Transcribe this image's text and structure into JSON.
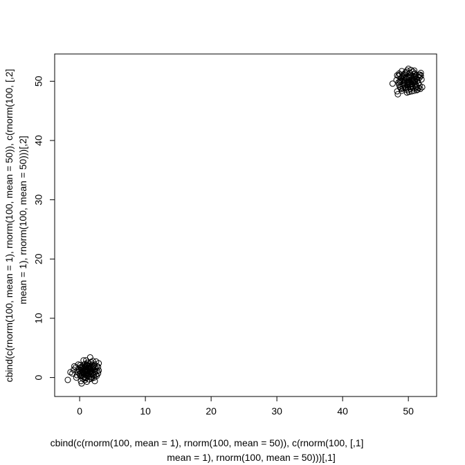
{
  "chart_data": {
    "type": "scatter",
    "title": "",
    "xlabel_lines": [
      "cbind(c(rnorm(100, mean = 1), rnorm(100, mean = 50)), c(rnorm(100, [,1]",
      "mean = 1), rnorm(100, mean = 50)))[,1]"
    ],
    "ylabel_lines": [
      "cbind(c(rnorm(100, mean = 1), rnorm(100, mean = 50)), c(rnorm(100, [,2]",
      "mean = 1), rnorm(100, mean = 50)))[,2]"
    ],
    "xlim": [
      -3.8,
      54.3
    ],
    "ylim": [
      -3.2,
      54.6
    ],
    "x_ticks": [
      0,
      10,
      20,
      30,
      40,
      50
    ],
    "y_ticks": [
      0,
      10,
      20,
      30,
      40,
      50
    ],
    "grid": false,
    "marker": "open-circle",
    "clusters": [
      {
        "center": [
          1,
          1
        ],
        "sd": 1,
        "n": 100
      },
      {
        "center": [
          50,
          50
        ],
        "sd": 1,
        "n": 100
      }
    ],
    "points": [
      [
        0.2,
        1.3
      ],
      [
        1.5,
        0.8
      ],
      [
        0.9,
        1.9
      ],
      [
        1.8,
        1.1
      ],
      [
        0.4,
        0.2
      ],
      [
        1.2,
        2.5
      ],
      [
        2.1,
        1.6
      ],
      [
        -0.3,
        1.0
      ],
      [
        1.0,
        0.5
      ],
      [
        0.6,
        1.5
      ],
      [
        1.7,
        0.1
      ],
      [
        2.4,
        0.9
      ],
      [
        0.1,
        2.1
      ],
      [
        1.4,
        1.4
      ],
      [
        0.8,
        -0.4
      ],
      [
        2.8,
        1.8
      ],
      [
        -1.1,
        0.7
      ],
      [
        0.5,
        0.9
      ],
      [
        1.9,
        2.2
      ],
      [
        1.1,
        1.0
      ],
      [
        0.3,
        -1.0
      ],
      [
        2.6,
        0.3
      ],
      [
        1.6,
        3.4
      ],
      [
        0.7,
        1.2
      ],
      [
        -0.6,
        1.7
      ],
      [
        1.3,
        0.4
      ],
      [
        2.2,
        1.3
      ],
      [
        0.0,
        0.6
      ],
      [
        1.0,
        1.8
      ],
      [
        2.9,
        2.4
      ],
      [
        0.6,
        2.9
      ],
      [
        1.8,
        -0.2
      ],
      [
        -0.1,
        1.4
      ],
      [
        1.5,
        1.6
      ],
      [
        2.3,
        -0.6
      ],
      [
        0.9,
        0.0
      ],
      [
        1.2,
        2.1
      ],
      [
        0.2,
        0.8
      ],
      [
        2.0,
        0.6
      ],
      [
        1.7,
        1.9
      ],
      [
        -1.8,
        -0.4
      ],
      [
        0.4,
        1.6
      ],
      [
        1.1,
        -0.7
      ],
      [
        2.5,
        2.7
      ],
      [
        0.8,
        1.1
      ],
      [
        1.4,
        0.2
      ],
      [
        -0.4,
        0.4
      ],
      [
        2.1,
        2.0
      ],
      [
        0.5,
        -0.2
      ],
      [
        1.9,
        1.4
      ],
      [
        0.3,
        1.8
      ],
      [
        1.6,
        0.9
      ],
      [
        2.7,
        1.1
      ],
      [
        1.0,
        2.9
      ],
      [
        -0.8,
        1.9
      ],
      [
        1.3,
        1.7
      ],
      [
        0.1,
        0.3
      ],
      [
        2.2,
        0.0
      ],
      [
        0.7,
        0.7
      ],
      [
        1.5,
        2.3
      ],
      [
        2.0,
        1.8
      ],
      [
        0.9,
        -0.1
      ],
      [
        -0.2,
        2.2
      ],
      [
        1.8,
        0.5
      ],
      [
        1.2,
        1.2
      ],
      [
        0.6,
        0.1
      ],
      [
        2.4,
        1.5
      ],
      [
        1.1,
        0.8
      ],
      [
        0.0,
        1.1
      ],
      [
        1.7,
        2.6
      ],
      [
        2.8,
        0.7
      ],
      [
        0.4,
        1.0
      ],
      [
        1.4,
        -0.3
      ],
      [
        -1.4,
        0.9
      ],
      [
        2.6,
        1.9
      ],
      [
        0.8,
        2.3
      ],
      [
        1.6,
        1.3
      ],
      [
        0.2,
        -0.6
      ],
      [
        2.1,
        0.4
      ],
      [
        1.0,
        1.5
      ],
      [
        0.5,
        2.0
      ],
      [
        1.9,
        0.0
      ],
      [
        -0.5,
        0.0
      ],
      [
        2.3,
        2.2
      ],
      [
        1.3,
        0.6
      ],
      [
        0.7,
        1.7
      ],
      [
        1.5,
        1.0
      ],
      [
        0.3,
        0.5
      ],
      [
        2.0,
        2.8
      ],
      [
        1.2,
        0.3
      ],
      [
        -0.9,
        1.3
      ],
      [
        1.8,
        1.7
      ],
      [
        0.6,
        0.6
      ],
      [
        2.5,
        0.5
      ],
      [
        1.1,
        2.2
      ],
      [
        0.9,
        1.4
      ],
      [
        1.7,
        0.7
      ],
      [
        0.1,
        1.7
      ],
      [
        2.9,
        1.2
      ],
      [
        1.4,
        1.9
      ],
      [
        49.2,
        50.3
      ],
      [
        50.5,
        49.6
      ],
      [
        51.1,
        51.0
      ],
      [
        48.7,
        49.1
      ],
      [
        50.0,
        50.0
      ],
      [
        49.8,
        51.8
      ],
      [
        51.7,
        49.3
      ],
      [
        50.3,
        48.7
      ],
      [
        48.5,
        50.9
      ],
      [
        49.5,
        49.8
      ],
      [
        50.8,
        50.6
      ],
      [
        52.0,
        50.3
      ],
      [
        49.0,
        48.4
      ],
      [
        50.2,
        51.4
      ],
      [
        51.4,
        48.6
      ],
      [
        48.9,
        50.5
      ],
      [
        50.6,
        49.2
      ],
      [
        49.7,
        50.7
      ],
      [
        51.9,
        51.4
      ],
      [
        50.1,
        48.2
      ],
      [
        48.3,
        48.3
      ],
      [
        49.4,
        51.2
      ],
      [
        50.9,
        49.9
      ],
      [
        51.5,
        50.8
      ],
      [
        49.1,
        49.5
      ],
      [
        50.4,
        50.2
      ],
      [
        48.6,
        51.3
      ],
      [
        51.2,
        48.9
      ],
      [
        49.9,
        49.0
      ],
      [
        50.7,
        51.6
      ],
      [
        47.6,
        49.6
      ],
      [
        51.0,
        50.0
      ],
      [
        49.6,
        48.6
      ],
      [
        50.0,
        52.1
      ],
      [
        52.1,
        49.0
      ],
      [
        48.8,
        49.9
      ],
      [
        50.5,
        50.9
      ],
      [
        49.3,
        50.1
      ],
      [
        51.6,
        51.1
      ],
      [
        50.2,
        49.4
      ],
      [
        48.4,
        47.8
      ],
      [
        49.8,
        49.3
      ],
      [
        50.9,
        48.4
      ],
      [
        51.3,
        50.4
      ],
      [
        49.0,
        51.7
      ],
      [
        50.6,
        50.4
      ],
      [
        49.5,
        48.9
      ],
      [
        51.8,
        48.7
      ],
      [
        50.1,
        49.7
      ],
      [
        48.7,
        50.0
      ],
      [
        50.3,
        51.0
      ],
      [
        51.1,
        49.5
      ],
      [
        49.4,
        49.2
      ],
      [
        50.8,
        48.8
      ],
      [
        49.7,
        51.5
      ],
      [
        51.4,
        50.1
      ],
      [
        48.9,
        48.7
      ],
      [
        50.4,
        49.0
      ],
      [
        49.2,
        51.0
      ],
      [
        51.7,
        50.6
      ],
      [
        50.0,
        48.5
      ],
      [
        49.6,
        50.5
      ],
      [
        50.7,
        49.8
      ],
      [
        48.2,
        50.2
      ],
      [
        51.0,
        51.3
      ],
      [
        49.9,
        49.6
      ],
      [
        50.5,
        48.3
      ],
      [
        49.1,
        50.8
      ],
      [
        51.5,
        49.7
      ],
      [
        50.2,
        50.7
      ],
      [
        48.6,
        49.4
      ],
      [
        49.8,
        48.1
      ],
      [
        50.9,
        51.8
      ],
      [
        51.2,
        49.1
      ],
      [
        49.3,
        49.9
      ],
      [
        50.6,
        50.0
      ],
      [
        48.5,
        49.8
      ],
      [
        51.6,
        48.9
      ],
      [
        49.7,
        50.3
      ],
      [
        50.3,
        49.1
      ],
      [
        49.0,
        50.0
      ],
      [
        50.8,
        51.2
      ],
      [
        51.9,
        50.9
      ],
      [
        49.5,
        51.4
      ],
      [
        50.1,
        50.5
      ],
      [
        48.8,
        48.9
      ],
      [
        51.3,
        48.5
      ],
      [
        50.4,
        51.9
      ],
      [
        49.6,
        49.0
      ],
      [
        50.7,
        50.2
      ],
      [
        48.3,
        51.0
      ],
      [
        51.1,
        50.7
      ],
      [
        49.9,
        50.8
      ],
      [
        50.0,
        49.3
      ],
      [
        49.2,
        48.8
      ],
      [
        51.8,
        51.1
      ],
      [
        50.5,
        49.5
      ],
      [
        49.4,
        50.6
      ],
      [
        50.9,
        50.1
      ],
      [
        48.7,
        51.1
      ]
    ]
  }
}
